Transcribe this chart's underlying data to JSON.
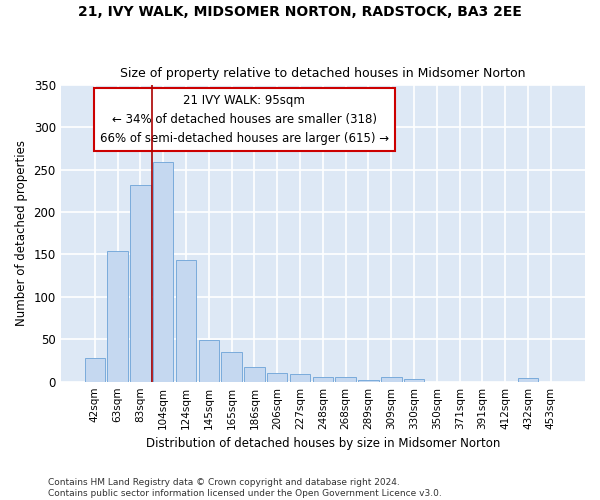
{
  "title": "21, IVY WALK, MIDSOMER NORTON, RADSTOCK, BA3 2EE",
  "subtitle": "Size of property relative to detached houses in Midsomer Norton",
  "xlabel": "Distribution of detached houses by size in Midsomer Norton",
  "ylabel": "Number of detached properties",
  "categories": [
    "42sqm",
    "63sqm",
    "83sqm",
    "104sqm",
    "124sqm",
    "145sqm",
    "165sqm",
    "186sqm",
    "206sqm",
    "227sqm",
    "248sqm",
    "268sqm",
    "289sqm",
    "309sqm",
    "330sqm",
    "350sqm",
    "371sqm",
    "391sqm",
    "412sqm",
    "432sqm",
    "453sqm"
  ],
  "values": [
    28,
    154,
    232,
    259,
    144,
    49,
    35,
    17,
    10,
    9,
    5,
    5,
    2,
    5,
    3,
    0,
    0,
    0,
    0,
    4,
    0
  ],
  "bar_color": "#c5d8f0",
  "bar_edge_color": "#7aabdb",
  "background_color": "#dde8f5",
  "fig_background": "#ffffff",
  "grid_color": "#ffffff",
  "annotation_line1": "21 IVY WALK: 95sqm",
  "annotation_line2": "← 34% of detached houses are smaller (318)",
  "annotation_line3": "66% of semi-detached houses are larger (615) →",
  "annotation_box_color": "#ffffff",
  "annotation_box_edge_color": "#cc0000",
  "vline_color": "#aa0000",
  "footer": "Contains HM Land Registry data © Crown copyright and database right 2024.\nContains public sector information licensed under the Open Government Licence v3.0.",
  "ylim": [
    0,
    350
  ],
  "yticks": [
    0,
    50,
    100,
    150,
    200,
    250,
    300,
    350
  ]
}
